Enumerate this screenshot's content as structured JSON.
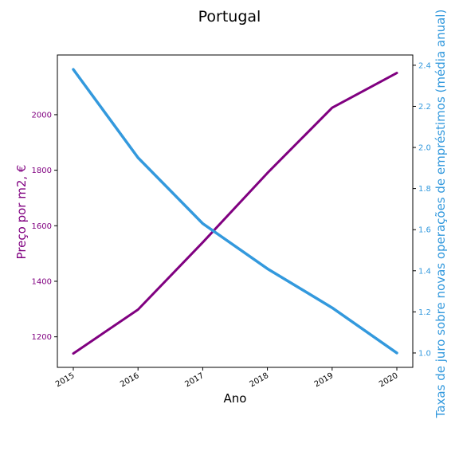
{
  "chart_data": {
    "type": "line",
    "title": "Portugal",
    "xlabel": "Ano",
    "x": [
      "2015",
      "2016",
      "2017",
      "2018",
      "2019",
      "2020"
    ],
    "y_left": {
      "label": "Preço por m2, €",
      "color": "#800080",
      "ticks": [
        1200,
        1400,
        1600,
        1800,
        2000
      ],
      "ylim": [
        1090,
        2215
      ]
    },
    "y_right": {
      "label": "Taxas de juro sobre novas operações de empréstimos (média anual)",
      "color": "#3399dd",
      "ticks": [
        "1.0",
        "1.2",
        "1.4",
        "1.6",
        "1.8",
        "2.0",
        "2.2",
        "2.4"
      ],
      "ylim": [
        0.93,
        2.45
      ]
    },
    "series": [
      {
        "axis": "left",
        "color": "#800080",
        "values": [
          1140,
          1298,
          1540,
          1790,
          2025,
          2150
        ]
      },
      {
        "axis": "right",
        "color": "#3399dd",
        "values": [
          2.38,
          1.95,
          1.63,
          1.41,
          1.22,
          1.0
        ]
      }
    ],
    "grid": false,
    "legend": "none"
  }
}
